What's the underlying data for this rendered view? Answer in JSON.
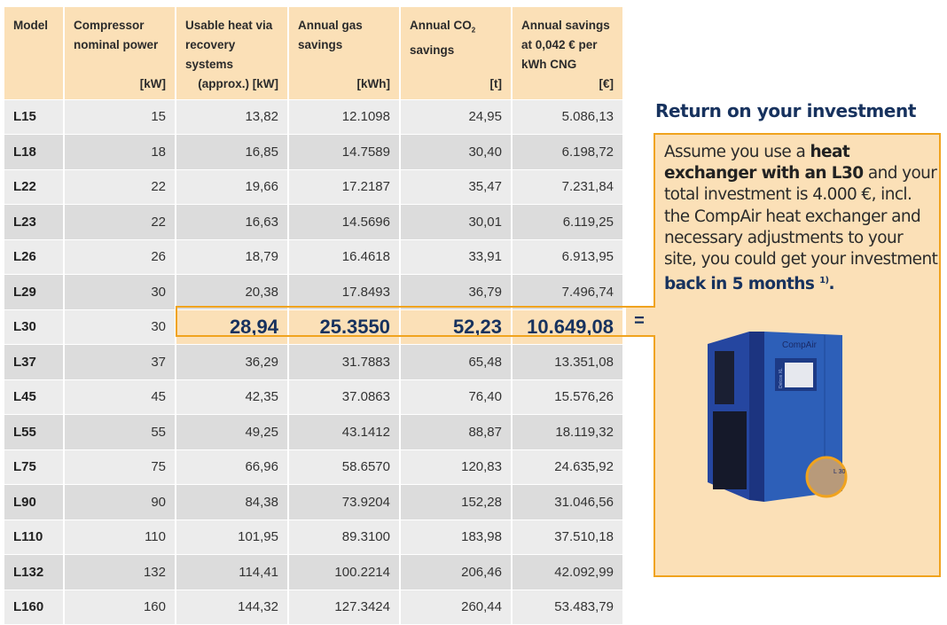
{
  "table": {
    "headers": [
      {
        "label": "Model",
        "unit": ""
      },
      {
        "label": "Compressor nominal power",
        "unit": "[kW]"
      },
      {
        "label": "Usable heat via recovery systems",
        "unit": "(approx.) [kW]"
      },
      {
        "label": "Annual gas savings",
        "unit": "[kWh]"
      },
      {
        "label": "Annual CO",
        "sub": "2",
        "label2": "savings",
        "unit": "[t]"
      },
      {
        "label": "Annual savings at 0,042 € per kWh CNG",
        "unit": "[€]"
      }
    ],
    "rows": [
      [
        "L15",
        "15",
        "13,82",
        "12.1098",
        "24,95",
        "5.086,13"
      ],
      [
        "L18",
        "18",
        "16,85",
        "14.7589",
        "30,40",
        "6.198,72"
      ],
      [
        "L22",
        "22",
        "19,66",
        "17.2187",
        "35,47",
        "7.231,84"
      ],
      [
        "L23",
        "22",
        "16,63",
        "14.5696",
        "30,01",
        "6.119,25"
      ],
      [
        "L26",
        "26",
        "18,79",
        "16.4618",
        "33,91",
        "6.913,95"
      ],
      [
        "L29",
        "30",
        "20,38",
        "17.8493",
        "36,79",
        "7.496,74"
      ],
      [
        "L30",
        "30",
        "28,94",
        "25.3550",
        "52,23",
        "10.649,08"
      ],
      [
        "L37",
        "37",
        "36,29",
        "31.7883",
        "65,48",
        "13.351,08"
      ],
      [
        "L45",
        "45",
        "42,35",
        "37.0863",
        "76,40",
        "15.576,26"
      ],
      [
        "L55",
        "55",
        "49,25",
        "43.1412",
        "88,87",
        "18.119,32"
      ],
      [
        "L75",
        "75",
        "66,96",
        "58.6570",
        "120,83",
        "24.635,92"
      ],
      [
        "L90",
        "90",
        "84,38",
        "73.9204",
        "152,28",
        "31.046,56"
      ],
      [
        "L110",
        "110",
        "101,95",
        "89.3100",
        "183,98",
        "37.510,18"
      ],
      [
        "L132",
        "132",
        "114,41",
        "100.2214",
        "206,46",
        "42.092,99"
      ],
      [
        "L160",
        "160",
        "144,32",
        "127.3424",
        "260,44",
        "53.483,79"
      ]
    ],
    "highlighted_model": "L30",
    "equals": "="
  },
  "roi": {
    "title": "Return on your investment",
    "t1": "Assume you use a ",
    "t2": "heat exchanger with an L30",
    "t3": " and your total investment is 4.000 €, incl. the CompAir heat exchanger and necessary adjustments to your site, you could get your investment ",
    "t4": "back in 5 months",
    "t5": "1)",
    "t6": "."
  },
  "image": {
    "brand": "CompAir",
    "model_label": "L 30",
    "panel": "Delcos XL"
  },
  "colors": {
    "header_bg": "#fbe0b7",
    "accent": "#f0a31e",
    "navy": "#17325e",
    "machine_blue": "#2d5fb8"
  }
}
